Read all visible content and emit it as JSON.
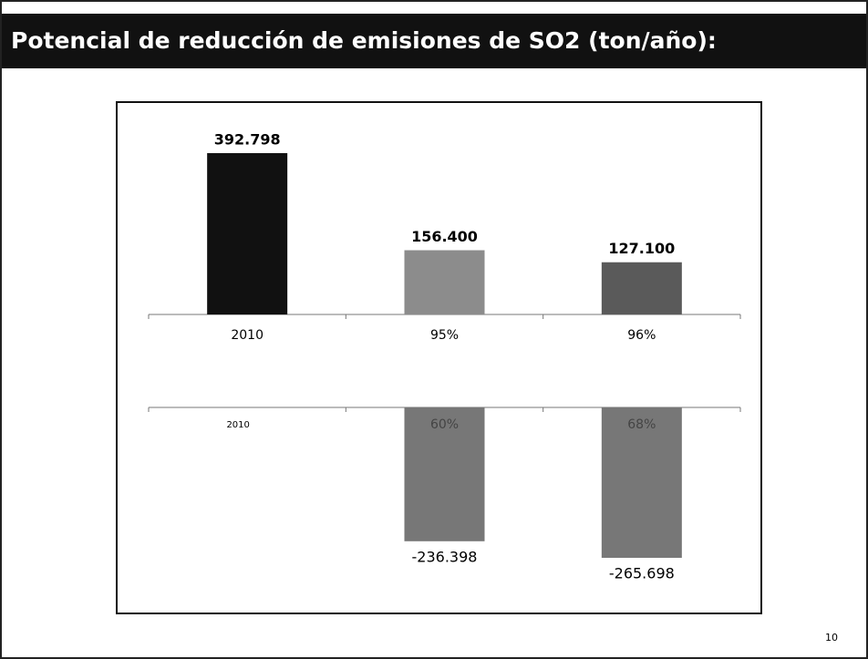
{
  "slide": {
    "title": "Potencial de reducción de emisiones de SO2  (ton/año):",
    "page_number": "10"
  },
  "chart_data": [
    {
      "type": "bar",
      "categories": [
        "2010",
        "95%",
        "96%"
      ],
      "values": [
        392798,
        156400,
        127100
      ],
      "value_labels": [
        "392.798",
        "156.400",
        "127.100"
      ],
      "colors": [
        "#111111",
        "#8c8c8c",
        "#5a5a5a"
      ]
    },
    {
      "type": "bar",
      "categories": [
        "2010",
        "60%",
        "68%"
      ],
      "values": [
        null,
        -236398,
        -265698
      ],
      "value_labels": [
        null,
        "-236.398",
        "-265.698"
      ],
      "colors": [
        "#111111",
        "#777777",
        "#777777"
      ]
    }
  ]
}
